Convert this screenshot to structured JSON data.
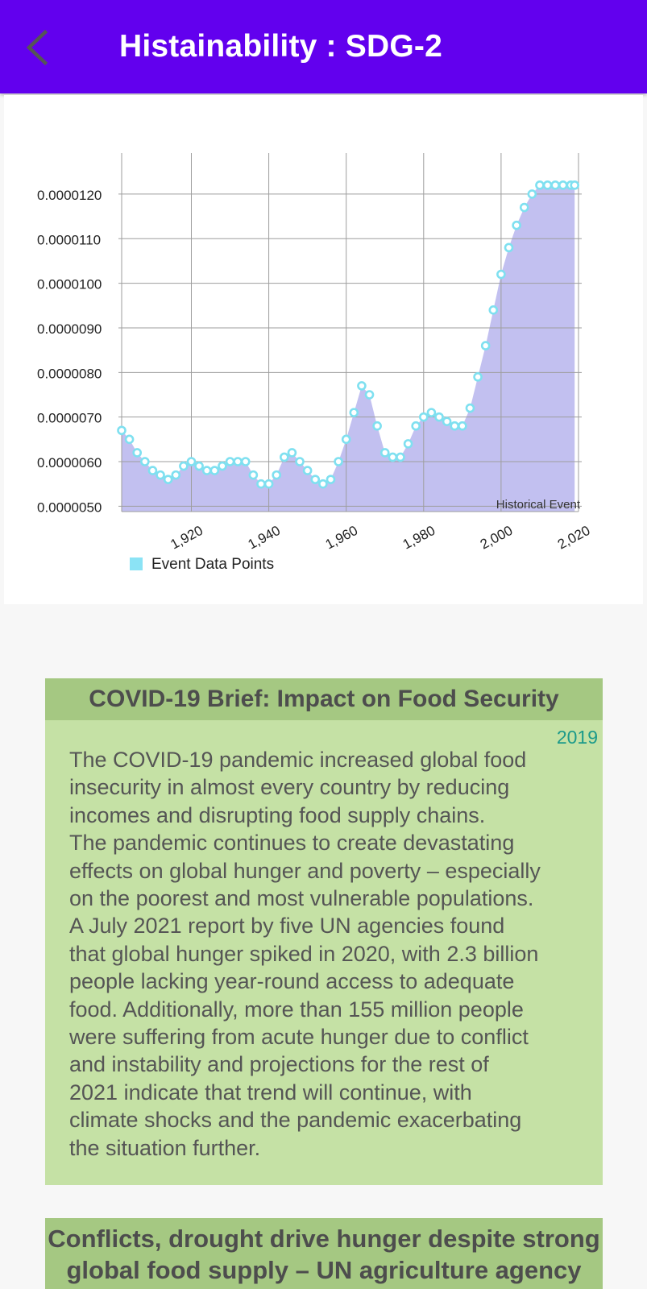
{
  "app_bar": {
    "title": "Histainability : SDG-2",
    "back_icon": "chevron-left-icon",
    "color": "#6200ee"
  },
  "chart_data": {
    "type": "area",
    "legend": {
      "label": "Event Data Points",
      "position": "bottom-left",
      "color": "#8be3f5"
    },
    "annotation": "Historical Event",
    "fill_color": "#c2c0f0",
    "marker_color": "#7fe0f0",
    "grid": true,
    "xlim": [
      1902,
      2020
    ],
    "ylim": [
      4.88e-06,
      1.292e-05
    ],
    "x_ticks": [
      "1,920",
      "1,940",
      "1,960",
      "1,980",
      "2,000",
      "2,020"
    ],
    "y_ticks": [
      "0.0000120",
      "0.0000110",
      "0.0000100",
      "0.0000090",
      "0.0000080",
      "0.0000070",
      "0.0000060",
      "0.0000050"
    ],
    "series": [
      {
        "name": "Event Data Points",
        "x": [
          1902,
          1904,
          1906,
          1908,
          1910,
          1912,
          1914,
          1916,
          1918,
          1920,
          1922,
          1924,
          1926,
          1928,
          1930,
          1932,
          1934,
          1936,
          1938,
          1940,
          1942,
          1944,
          1946,
          1948,
          1950,
          1952,
          1954,
          1956,
          1958,
          1960,
          1962,
          1964,
          1966,
          1968,
          1970,
          1972,
          1974,
          1976,
          1978,
          1980,
          1982,
          1984,
          1986,
          1988,
          1990,
          1992,
          1994,
          1996,
          1998,
          2000,
          2002,
          2004,
          2006,
          2008,
          2010,
          2012,
          2014,
          2016,
          2018,
          2019
        ],
        "y": [
          6.7e-06,
          6.5e-06,
          6.2e-06,
          6e-06,
          5.8e-06,
          5.7e-06,
          5.6e-06,
          5.7e-06,
          5.9e-06,
          6e-06,
          5.9e-06,
          5.8e-06,
          5.8e-06,
          5.9e-06,
          6e-06,
          6e-06,
          6e-06,
          5.7e-06,
          5.5e-06,
          5.5e-06,
          5.7e-06,
          6.1e-06,
          6.2e-06,
          6e-06,
          5.8e-06,
          5.6e-06,
          5.5e-06,
          5.6e-06,
          6e-06,
          6.5e-06,
          7.1e-06,
          7.7e-06,
          7.5e-06,
          6.8e-06,
          6.2e-06,
          6.1e-06,
          6.1e-06,
          6.4e-06,
          6.8e-06,
          7e-06,
          7.1e-06,
          7e-06,
          6.9e-06,
          6.8e-06,
          6.8e-06,
          7.2e-06,
          7.9e-06,
          8.6e-06,
          9.4e-06,
          1.02e-05,
          1.08e-05,
          1.13e-05,
          1.17e-05,
          1.2e-05,
          1.22e-05,
          1.22e-05,
          1.22e-05,
          1.22e-05,
          1.22e-05,
          1.22e-05
        ]
      }
    ]
  },
  "cards": [
    {
      "title": "COVID-19 Brief: Impact on Food Security",
      "year": "2019",
      "body": "The COVID-19 pandemic increased global food\ninsecurity in almost every country by reducing\nincomes and disrupting food supply chains.\nThe pandemic continues to create devastating\neffects on global hunger and poverty – especially\non the poorest and most vulnerable populations.\nA July 2021 report by five UN agencies found\nthat global hunger spiked in 2020, with 2.3 billion\npeople lacking year-round access to adequate\nfood. Additionally, more than 155 million people\nwere suffering from acute hunger due to conflict\nand instability and projections for the rest of\n2021 indicate that trend will continue, with\nclimate shocks and the pandemic exacerbating\nthe situation further."
    },
    {
      "title": "Conflicts, drought drive hunger despite strong global food supply – UN agriculture agency"
    }
  ]
}
